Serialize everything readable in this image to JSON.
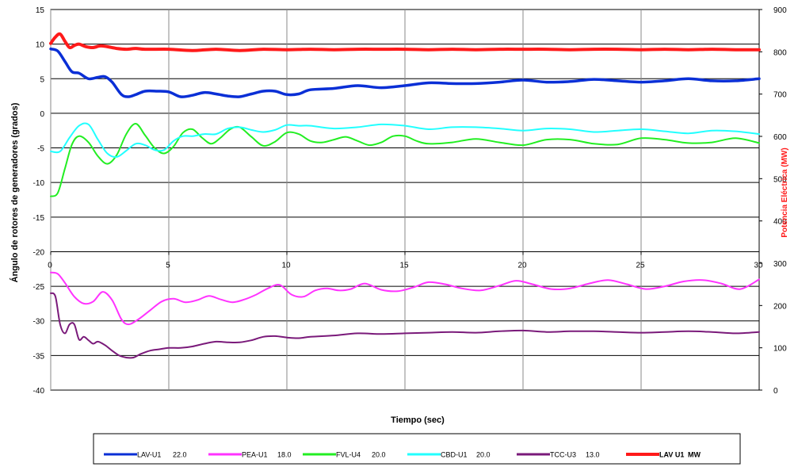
{
  "chart_data": {
    "type": "line",
    "xlabel": "Tiempo (sec)",
    "ylabel": "Ángulo de rotores de generadores (grados)",
    "y2label": "Potencia Eléctrica (MW)",
    "xlim": [
      0,
      30
    ],
    "ylim": [
      -40,
      15
    ],
    "y2lim": [
      0,
      900
    ],
    "x_ticks": [
      "0",
      "5",
      "10",
      "15",
      "20",
      "25",
      "30"
    ],
    "y_ticks": [
      "15",
      "10",
      "5",
      "0",
      "-5",
      "-10",
      "-15",
      "-20",
      "-25",
      "-30",
      "-35",
      "-40"
    ],
    "y2_ticks": [
      "900",
      "800",
      "700",
      "600",
      "500",
      "400",
      "300",
      "200",
      "100",
      "0"
    ],
    "grid": true,
    "legend_position": "bottom",
    "series": [
      {
        "name": "LAV-U1",
        "legend_value": "22.0",
        "color": "#0a2fd6",
        "axis": "left",
        "width": 3.5,
        "x": [
          0,
          0.3,
          0.6,
          0.9,
          1.2,
          1.6,
          2.0,
          2.3,
          2.6,
          3.0,
          3.3,
          3.6,
          4.0,
          4.5,
          5.0,
          5.5,
          6.0,
          6.5,
          7.0,
          7.5,
          8.0,
          8.5,
          9.0,
          9.5,
          10.0,
          10.5,
          11.0,
          12.0,
          13.0,
          14.0,
          15.0,
          16.0,
          17.0,
          18.0,
          19.0,
          20.0,
          21.0,
          22.0,
          23.0,
          24.0,
          25.0,
          26.0,
          27.0,
          28.0,
          29.0,
          30.0
        ],
        "y": [
          9.3,
          9.0,
          7.5,
          6.0,
          5.8,
          5.0,
          5.2,
          5.3,
          4.5,
          2.7,
          2.4,
          2.7,
          3.2,
          3.2,
          3.1,
          2.4,
          2.6,
          3.0,
          2.8,
          2.5,
          2.4,
          2.8,
          3.2,
          3.2,
          2.7,
          2.8,
          3.4,
          3.6,
          4.0,
          3.7,
          4.0,
          4.4,
          4.3,
          4.3,
          4.5,
          4.8,
          4.5,
          4.6,
          4.9,
          4.7,
          4.5,
          4.7,
          5.0,
          4.7,
          4.7,
          5.0
        ]
      },
      {
        "name": "PEA-U1",
        "legend_value": "18.0",
        "color": "#ff33ff",
        "axis": "left",
        "width": 2,
        "x": [
          0,
          0.3,
          0.6,
          1.0,
          1.4,
          1.8,
          2.2,
          2.6,
          3.0,
          3.3,
          3.7,
          4.2,
          4.7,
          5.2,
          5.7,
          6.2,
          6.7,
          7.2,
          7.7,
          8.2,
          8.7,
          9.2,
          9.7,
          10.2,
          10.7,
          11.2,
          11.7,
          12.2,
          12.7,
          13.3,
          14.0,
          14.7,
          15.4,
          16.0,
          16.7,
          17.4,
          18.2,
          19.0,
          19.7,
          20.4,
          21.2,
          22.0,
          22.8,
          23.6,
          24.4,
          25.2,
          26.0,
          26.8,
          27.6,
          28.4,
          29.2,
          30.0
        ],
        "y": [
          -23.0,
          -23.2,
          -24.5,
          -26.5,
          -27.5,
          -27.2,
          -25.8,
          -27.0,
          -29.8,
          -30.5,
          -29.8,
          -28.5,
          -27.2,
          -26.8,
          -27.3,
          -27.0,
          -26.4,
          -26.9,
          -27.3,
          -26.9,
          -26.2,
          -25.3,
          -24.8,
          -26.2,
          -26.5,
          -25.6,
          -25.3,
          -25.6,
          -25.4,
          -24.6,
          -25.5,
          -25.7,
          -25.1,
          -24.4,
          -24.7,
          -25.3,
          -25.6,
          -24.9,
          -24.2,
          -24.7,
          -25.4,
          -25.3,
          -24.6,
          -24.1,
          -24.7,
          -25.4,
          -25.0,
          -24.3,
          -24.1,
          -24.6,
          -25.4,
          -24.0
        ]
      },
      {
        "name": "FVL-U4",
        "legend_value": "20.0",
        "color": "#22ee22",
        "axis": "left",
        "width": 2,
        "x": [
          0,
          0.3,
          0.6,
          0.9,
          1.2,
          1.6,
          2.0,
          2.4,
          2.8,
          3.2,
          3.6,
          4.0,
          4.4,
          4.8,
          5.2,
          5.6,
          6.0,
          6.4,
          6.8,
          7.2,
          7.6,
          8.0,
          8.5,
          9.0,
          9.5,
          10.0,
          10.5,
          11.0,
          11.5,
          12.0,
          12.5,
          13.0,
          13.5,
          14.0,
          14.5,
          15.0,
          15.5,
          16.0,
          17.0,
          18.0,
          19.0,
          20.0,
          21.0,
          22.0,
          23.0,
          24.0,
          25.0,
          26.0,
          27.0,
          28.0,
          29.0,
          30.0
        ],
        "y": [
          -12.0,
          -11.5,
          -8.0,
          -4.5,
          -3.3,
          -4.2,
          -6.2,
          -7.3,
          -6.0,
          -3.0,
          -1.5,
          -3.2,
          -5.0,
          -5.8,
          -4.8,
          -2.8,
          -2.3,
          -3.5,
          -4.4,
          -3.5,
          -2.3,
          -2.0,
          -3.4,
          -4.7,
          -4.1,
          -2.8,
          -3.0,
          -4.0,
          -4.2,
          -3.8,
          -3.4,
          -4.0,
          -4.6,
          -4.2,
          -3.3,
          -3.3,
          -4.0,
          -4.4,
          -4.2,
          -3.7,
          -4.2,
          -4.6,
          -3.8,
          -3.8,
          -4.4,
          -4.5,
          -3.6,
          -3.8,
          -4.3,
          -4.2,
          -3.6,
          -4.3
        ]
      },
      {
        "name": "CBD-U1",
        "legend_value": "20.0",
        "color": "#22ffff",
        "axis": "left",
        "width": 2,
        "x": [
          0,
          0.4,
          0.8,
          1.2,
          1.6,
          2.0,
          2.4,
          2.8,
          3.2,
          3.6,
          4.0,
          4.4,
          4.8,
          5.2,
          5.6,
          6.0,
          6.5,
          7.0,
          7.5,
          8.0,
          8.5,
          9.0,
          9.5,
          10.0,
          10.5,
          11.0,
          12.0,
          13.0,
          14.0,
          15.0,
          16.0,
          17.0,
          18.0,
          19.0,
          20.0,
          21.0,
          22.0,
          23.0,
          24.0,
          25.0,
          26.0,
          27.0,
          28.0,
          29.0,
          30.0
        ],
        "y": [
          -5.5,
          -5.5,
          -3.5,
          -1.8,
          -1.6,
          -3.8,
          -5.8,
          -6.3,
          -5.4,
          -4.4,
          -4.6,
          -5.3,
          -5.3,
          -4.0,
          -3.3,
          -3.3,
          -3.0,
          -3.0,
          -2.2,
          -2.0,
          -2.4,
          -2.7,
          -2.4,
          -1.7,
          -1.8,
          -1.8,
          -2.2,
          -2.0,
          -1.6,
          -1.8,
          -2.3,
          -2.0,
          -2.0,
          -2.2,
          -2.5,
          -2.2,
          -2.3,
          -2.7,
          -2.5,
          -2.3,
          -2.6,
          -2.9,
          -2.5,
          -2.6,
          -3.0
        ]
      },
      {
        "name": "TCC-U3",
        "legend_value": "13.0",
        "color": "#7a1a7a",
        "axis": "left",
        "width": 2,
        "x": [
          0,
          0.2,
          0.4,
          0.6,
          0.8,
          1.0,
          1.2,
          1.4,
          1.6,
          1.8,
          2.0,
          2.3,
          2.6,
          2.9,
          3.2,
          3.5,
          3.8,
          4.2,
          4.6,
          5.0,
          5.5,
          6.0,
          6.5,
          7.0,
          7.5,
          8.0,
          8.5,
          9.0,
          9.5,
          10.0,
          10.5,
          11.0,
          12.0,
          13.0,
          14.0,
          15.0,
          16.0,
          17.0,
          18.0,
          19.0,
          20.0,
          21.0,
          22.0,
          23.0,
          24.0,
          25.0,
          26.0,
          27.0,
          28.0,
          29.0,
          30.0
        ],
        "y": [
          -26.0,
          -26.5,
          -30.5,
          -31.8,
          -30.5,
          -30.5,
          -32.7,
          -32.3,
          -32.8,
          -33.3,
          -33.0,
          -33.5,
          -34.3,
          -35.0,
          -35.3,
          -35.3,
          -34.8,
          -34.3,
          -34.1,
          -33.9,
          -33.9,
          -33.7,
          -33.3,
          -33.0,
          -33.1,
          -33.1,
          -32.8,
          -32.3,
          -32.2,
          -32.4,
          -32.5,
          -32.3,
          -32.1,
          -31.8,
          -31.9,
          -31.8,
          -31.7,
          -31.6,
          -31.7,
          -31.5,
          -31.4,
          -31.6,
          -31.5,
          -31.5,
          -31.6,
          -31.7,
          -31.6,
          -31.5,
          -31.6,
          -31.8,
          -31.6
        ]
      },
      {
        "name": "LAV U1",
        "legend_value": "MW",
        "color": "#ff1a1a",
        "axis": "right",
        "width": 4,
        "x": [
          0,
          0.2,
          0.4,
          0.6,
          0.8,
          1.0,
          1.2,
          1.5,
          1.8,
          2.1,
          2.4,
          2.8,
          3.2,
          3.6,
          4.0,
          5.0,
          6.0,
          7.0,
          8.0,
          9.0,
          10.0,
          11.0,
          12.0,
          13.0,
          14.0,
          15.0,
          16.0,
          17.0,
          18.0,
          19.0,
          20.0,
          21.0,
          22.0,
          23.0,
          24.0,
          25.0,
          26.0,
          27.0,
          28.0,
          29.0,
          30.0
        ],
        "y": [
          820,
          835,
          842,
          825,
          810,
          815,
          818,
          812,
          810,
          814,
          812,
          808,
          806,
          808,
          806,
          806,
          803,
          806,
          803,
          806,
          805,
          806,
          805,
          806,
          806,
          806,
          805,
          806,
          805,
          806,
          806,
          806,
          805,
          806,
          806,
          805,
          806,
          805,
          806,
          805,
          805
        ]
      }
    ]
  }
}
